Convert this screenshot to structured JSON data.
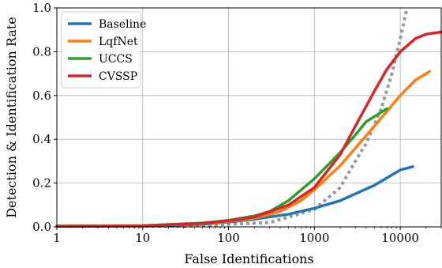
{
  "chart_data": {
    "type": "line",
    "title": "",
    "xlabel": "False Identifications",
    "ylabel": "Detection & Identification Rate",
    "xscale": "log",
    "xlim": [
      1,
      30000
    ],
    "ylim": [
      0.0,
      1.0
    ],
    "grid": true,
    "legend_position": "top-left",
    "x_ticks": [
      1,
      10,
      100,
      1000,
      10000
    ],
    "x_tick_labels": [
      "1",
      "10",
      "100",
      "1000",
      "10000"
    ],
    "y_ticks": [
      0.0,
      0.2,
      0.4,
      0.6,
      0.8,
      1.0
    ],
    "y_tick_labels": [
      "0.0",
      "0.2",
      "0.4",
      "0.6",
      "0.8",
      "1.0"
    ],
    "series": [
      {
        "name": "Baseline",
        "color": "#1f77b4",
        "style": "solid",
        "points": [
          [
            1,
            0.003
          ],
          [
            10,
            0.004
          ],
          [
            50,
            0.012
          ],
          [
            100,
            0.022
          ],
          [
            200,
            0.035
          ],
          [
            500,
            0.058
          ],
          [
            1000,
            0.085
          ],
          [
            2000,
            0.12
          ],
          [
            5000,
            0.19
          ],
          [
            10000,
            0.26
          ],
          [
            14000,
            0.275
          ]
        ]
      },
      {
        "name": "LqfNet",
        "color": "#ff7f0e",
        "style": "solid",
        "points": [
          [
            1,
            0.003
          ],
          [
            10,
            0.005
          ],
          [
            50,
            0.015
          ],
          [
            100,
            0.025
          ],
          [
            200,
            0.04
          ],
          [
            400,
            0.07
          ],
          [
            700,
            0.12
          ],
          [
            1000,
            0.17
          ],
          [
            2000,
            0.28
          ],
          [
            5000,
            0.46
          ],
          [
            10000,
            0.6
          ],
          [
            15000,
            0.67
          ],
          [
            22000,
            0.71
          ]
        ]
      },
      {
        "name": "UCCS",
        "color": "#2ca02c",
        "style": "solid",
        "points": [
          [
            1,
            0.003
          ],
          [
            10,
            0.006
          ],
          [
            50,
            0.018
          ],
          [
            100,
            0.03
          ],
          [
            200,
            0.05
          ],
          [
            300,
            0.07
          ],
          [
            500,
            0.12
          ],
          [
            1000,
            0.22
          ],
          [
            2000,
            0.34
          ],
          [
            3000,
            0.42
          ],
          [
            4000,
            0.48
          ],
          [
            7000,
            0.54
          ]
        ]
      },
      {
        "name": "CVSSP",
        "color": "#d62728",
        "style": "solid",
        "points": [
          [
            1,
            0.003
          ],
          [
            10,
            0.005
          ],
          [
            50,
            0.016
          ],
          [
            100,
            0.028
          ],
          [
            200,
            0.045
          ],
          [
            500,
            0.1
          ],
          [
            1000,
            0.18
          ],
          [
            2000,
            0.33
          ],
          [
            3000,
            0.46
          ],
          [
            5000,
            0.62
          ],
          [
            7000,
            0.72
          ],
          [
            10000,
            0.8
          ],
          [
            15000,
            0.86
          ],
          [
            20000,
            0.88
          ],
          [
            30000,
            0.89
          ]
        ]
      },
      {
        "name": "",
        "color": "#999999",
        "style": "dotted",
        "points": [
          [
            1,
            0.003
          ],
          [
            30,
            0.003
          ],
          [
            300,
            0.02
          ],
          [
            1000,
            0.08
          ],
          [
            2000,
            0.18
          ],
          [
            3000,
            0.3
          ],
          [
            4000,
            0.38
          ],
          [
            6000,
            0.54
          ],
          [
            8000,
            0.7
          ],
          [
            10000,
            0.86
          ],
          [
            12000,
            1.0
          ]
        ]
      }
    ]
  }
}
